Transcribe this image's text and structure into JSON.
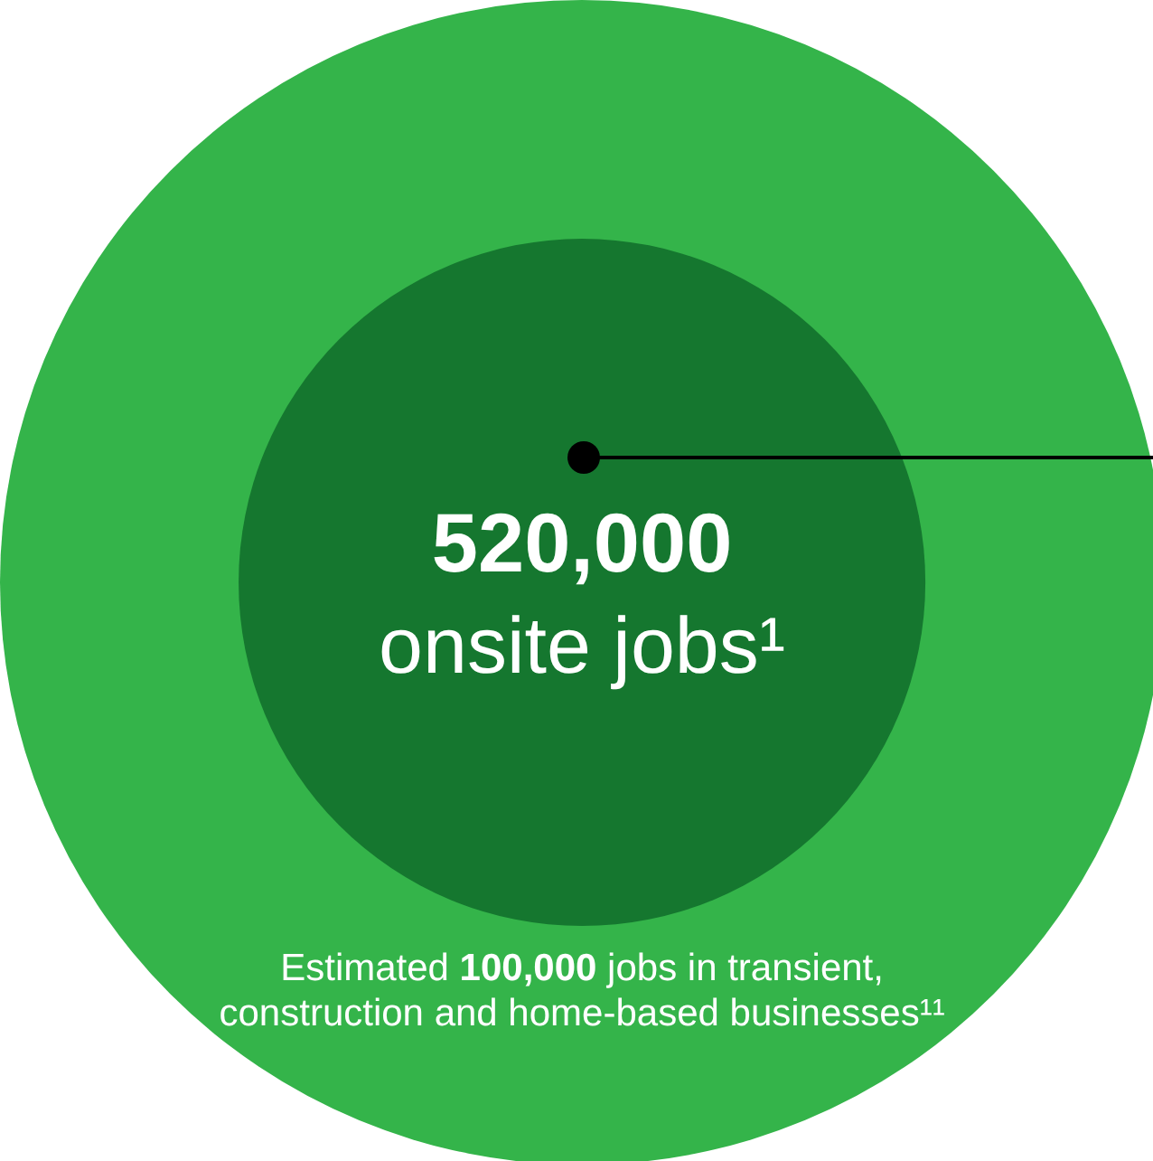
{
  "chart_data": {
    "type": "other",
    "categories": [
      "onsite jobs¹",
      "jobs in transient, construction and home-based businesses¹¹"
    ],
    "values": [
      520000,
      100000
    ],
    "value_labels": [
      "520,000",
      "100,000"
    ],
    "colors": [
      "#15772f",
      "#34b44a"
    ],
    "annotations": [
      "Estimated"
    ]
  }
}
